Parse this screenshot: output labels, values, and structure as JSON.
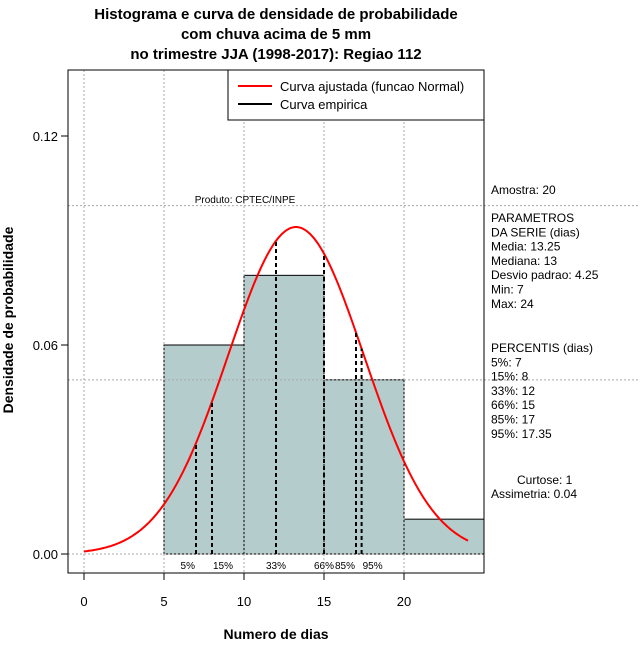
{
  "chart_data": {
    "type": "bar",
    "title": [
      "Histograma e curva de densidade de probabilidade",
      "com chuva acima de 5 mm",
      "no trimestre JJA (1998-2017): Regiao 112"
    ],
    "xlabel": "Numero de dias",
    "ylabel": "Densidade de probabilidade",
    "xlim": [
      0,
      25
    ],
    "ylim": [
      0,
      0.12
    ],
    "xticks": [
      0,
      5,
      10,
      15,
      20
    ],
    "yticks": [
      {
        "v": 0,
        "label": "0.00"
      },
      {
        "v": 0.06,
        "label": "0.06"
      },
      {
        "v": 0.12,
        "label": "0.12"
      }
    ],
    "grid_y": [
      0,
      0.05,
      0.1
    ],
    "bins": [
      {
        "from": 5,
        "to": 10,
        "density": 0.06
      },
      {
        "from": 10,
        "to": 15,
        "density": 0.08
      },
      {
        "from": 15,
        "to": 20,
        "density": 0.05
      },
      {
        "from": 20,
        "to": 25,
        "density": 0.01
      }
    ],
    "normal": {
      "mean": 13.25,
      "sd": 4.25,
      "from": 0,
      "to": 24
    },
    "percentiles": [
      {
        "label": "5%",
        "v": 7
      },
      {
        "label": "15%",
        "v": 8
      },
      {
        "label": "33%",
        "v": 12
      },
      {
        "label": "66%",
        "v": 15
      },
      {
        "label": "85%",
        "v": 17
      },
      {
        "label": "95%",
        "v": 17.35
      }
    ],
    "legend": {
      "placement": "top-right",
      "entries": [
        {
          "label": "Curva ajustada (funcao Normal)",
          "color": "#ff0000"
        },
        {
          "label": "Curva empirica",
          "color": "#000000"
        }
      ]
    },
    "credit": "Produto: CPTEC/INPE",
    "colors": {
      "bar": "#b4cccc",
      "curve": "#ff0000"
    }
  },
  "side": {
    "amostra": "Amostra: 20",
    "param_lines": [
      " PARAMETROS",
      "DA SERIE (dias)",
      "  Media: 13.25",
      "  Mediana: 13",
      "  Desvio padrao: 4.25",
      "  Min: 7",
      "  Max: 24"
    ],
    "perc_lines": [
      "PERCENTIS (dias)",
      "  5%: 7",
      "  15%: 8",
      "  33%: 12",
      "  66%: 15",
      "  85%: 17",
      "  95%: 17.35"
    ],
    "curtose": "Curtose: 1",
    "assimetria": "Assimetria: 0.04"
  }
}
